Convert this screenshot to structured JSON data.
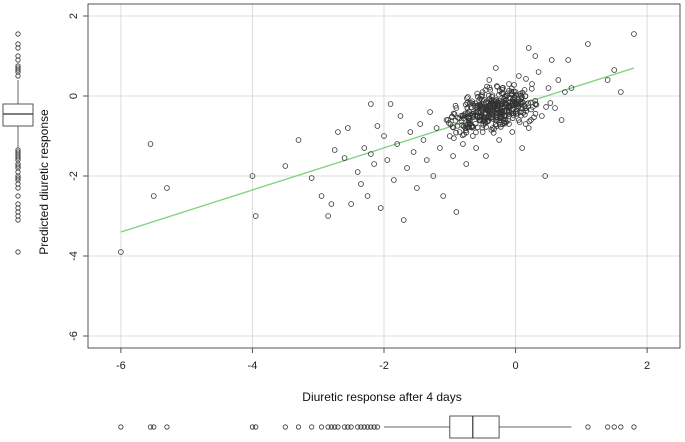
{
  "chart_data": {
    "type": "scatter",
    "title": "",
    "xlabel": "Diuretic response after 4 days",
    "ylabel": "Predicted diuretic response",
    "xlim": [
      -6.5,
      2.5
    ],
    "ylim": [
      -6.3,
      2.3
    ],
    "x_ticks": [
      "-6",
      "-4",
      "-2",
      "0",
      "2"
    ],
    "y_ticks": [
      "2",
      "0",
      "-2",
      "-4",
      "-6"
    ],
    "grid": true,
    "point_color": "#333333",
    "fit_line": {
      "color": "#7fd07f",
      "x": [
        -6.0,
        1.8
      ],
      "y": [
        -3.4,
        0.7
      ]
    },
    "points": [
      [
        -6.0,
        -3.9
      ],
      [
        -5.55,
        -1.2
      ],
      [
        -5.5,
        -2.5
      ],
      [
        -5.3,
        -2.3
      ],
      [
        -4.0,
        -2.0
      ],
      [
        -3.95,
        -3.0
      ],
      [
        -3.5,
        -1.75
      ],
      [
        -3.3,
        -1.1
      ],
      [
        -3.1,
        -2.05
      ],
      [
        -2.95,
        -2.5
      ],
      [
        -2.85,
        -3.0
      ],
      [
        -2.8,
        -2.7
      ],
      [
        -2.75,
        -1.35
      ],
      [
        -2.7,
        -0.9
      ],
      [
        -2.6,
        -1.55
      ],
      [
        -2.55,
        -0.8
      ],
      [
        -2.5,
        -2.7
      ],
      [
        -2.4,
        -1.9
      ],
      [
        -2.35,
        -2.2
      ],
      [
        -2.3,
        -1.3
      ],
      [
        -2.25,
        -2.5
      ],
      [
        -2.2,
        -0.2
      ],
      [
        -2.2,
        -1.45
      ],
      [
        -2.15,
        -1.7
      ],
      [
        -2.1,
        -0.75
      ],
      [
        -2.05,
        -2.8
      ],
      [
        -2.0,
        -1.0
      ],
      [
        -1.95,
        -1.6
      ],
      [
        -1.9,
        -0.2
      ],
      [
        -1.85,
        -2.1
      ],
      [
        -1.8,
        -1.2
      ],
      [
        -1.75,
        -0.5
      ],
      [
        -1.7,
        -3.1
      ],
      [
        -1.65,
        -1.8
      ],
      [
        -1.6,
        -0.9
      ],
      [
        -1.55,
        -1.4
      ],
      [
        -1.5,
        -2.3
      ],
      [
        -1.45,
        -0.7
      ],
      [
        -1.4,
        -1.1
      ],
      [
        -1.35,
        -1.6
      ],
      [
        -1.3,
        -0.4
      ],
      [
        -1.25,
        -2.0
      ],
      [
        -1.2,
        -0.8
      ],
      [
        -1.15,
        -1.3
      ],
      [
        -1.1,
        -2.5
      ],
      [
        -1.05,
        -0.6
      ],
      [
        -1.0,
        -1.0
      ],
      [
        -0.95,
        -1.5
      ],
      [
        -0.9,
        -0.3
      ],
      [
        -0.9,
        -2.9
      ],
      [
        -0.85,
        -0.9
      ],
      [
        -0.8,
        -1.2
      ],
      [
        -0.8,
        -0.5
      ],
      [
        -0.75,
        -1.7
      ],
      [
        -0.7,
        -0.7
      ],
      [
        -0.7,
        -0.2
      ],
      [
        -0.65,
        -1.0
      ],
      [
        -0.6,
        -0.4
      ],
      [
        -0.6,
        -1.3
      ],
      [
        -0.55,
        -0.6
      ],
      [
        -0.5,
        0.1
      ],
      [
        -0.5,
        -0.9
      ],
      [
        -0.45,
        -0.3
      ],
      [
        -0.45,
        -1.5
      ],
      [
        -0.4,
        -0.5
      ],
      [
        -0.4,
        0.4
      ],
      [
        -0.35,
        -0.8
      ],
      [
        -0.35,
        -0.2
      ],
      [
        -0.3,
        -0.6
      ],
      [
        -0.3,
        0.7
      ],
      [
        -0.25,
        -0.4
      ],
      [
        -0.25,
        -1.1
      ],
      [
        -0.2,
        -0.3
      ],
      [
        -0.2,
        0.2
      ],
      [
        -0.15,
        -0.5
      ],
      [
        -0.15,
        -0.1
      ],
      [
        -0.1,
        -0.7
      ],
      [
        -0.1,
        0.3
      ],
      [
        -0.05,
        -0.2
      ],
      [
        -0.05,
        -0.9
      ],
      [
        0.0,
        -0.4
      ],
      [
        0.0,
        0.1
      ],
      [
        0.05,
        -0.6
      ],
      [
        0.05,
        0.5
      ],
      [
        0.1,
        -0.3
      ],
      [
        0.1,
        -1.3
      ],
      [
        0.15,
        0.0
      ],
      [
        0.2,
        1.2
      ],
      [
        0.2,
        -0.8
      ],
      [
        0.25,
        0.3
      ],
      [
        0.3,
        1.0
      ],
      [
        0.3,
        -0.2
      ],
      [
        0.35,
        0.6
      ],
      [
        0.4,
        -0.5
      ],
      [
        0.45,
        -2.0
      ],
      [
        0.5,
        0.2
      ],
      [
        0.55,
        0.9
      ],
      [
        0.6,
        -0.3
      ],
      [
        0.65,
        0.4
      ],
      [
        0.7,
        -0.6
      ],
      [
        0.75,
        0.1
      ],
      [
        0.8,
        0.9
      ],
      [
        0.85,
        0.2
      ],
      [
        1.1,
        1.3
      ],
      [
        1.4,
        0.4
      ],
      [
        1.5,
        0.65
      ],
      [
        1.6,
        0.1
      ],
      [
        1.8,
        1.55
      ]
    ],
    "core_cluster": {
      "cx": -0.35,
      "cy": -0.35,
      "sx": 0.45,
      "sy": 0.32,
      "n": 360
    },
    "x_marginal": {
      "box": {
        "q1": -1.0,
        "median": -0.65,
        "q3": -0.25,
        "whisker_low": -2.0,
        "whisker_high": 0.85
      },
      "outliers": [
        -6.0,
        -5.55,
        -5.5,
        -5.3,
        -4.0,
        -3.95,
        -3.5,
        -3.3,
        -3.1,
        -2.95,
        -2.85,
        -2.8,
        -2.75,
        -2.7,
        -2.6,
        -2.55,
        -2.5,
        -2.4,
        -2.35,
        -2.3,
        -2.25,
        -2.2,
        -2.15,
        -2.1,
        1.1,
        1.4,
        1.5,
        1.6,
        1.8
      ]
    },
    "y_marginal": {
      "box": {
        "q1": -0.75,
        "median": -0.45,
        "q3": -0.2,
        "whisker_low": -1.3,
        "whisker_high": 0.4
      },
      "outliers": [
        1.55,
        1.3,
        1.2,
        1.0,
        0.9,
        0.75,
        0.7,
        0.65,
        0.6,
        0.5,
        -1.35,
        -1.4,
        -1.45,
        -1.5,
        -1.55,
        -1.6,
        -1.7,
        -1.75,
        -1.8,
        -1.9,
        -2.0,
        -2.05,
        -2.1,
        -2.2,
        -2.3,
        -2.5,
        -2.7,
        -2.8,
        -2.9,
        -3.0,
        -3.1,
        -3.9
      ]
    }
  }
}
